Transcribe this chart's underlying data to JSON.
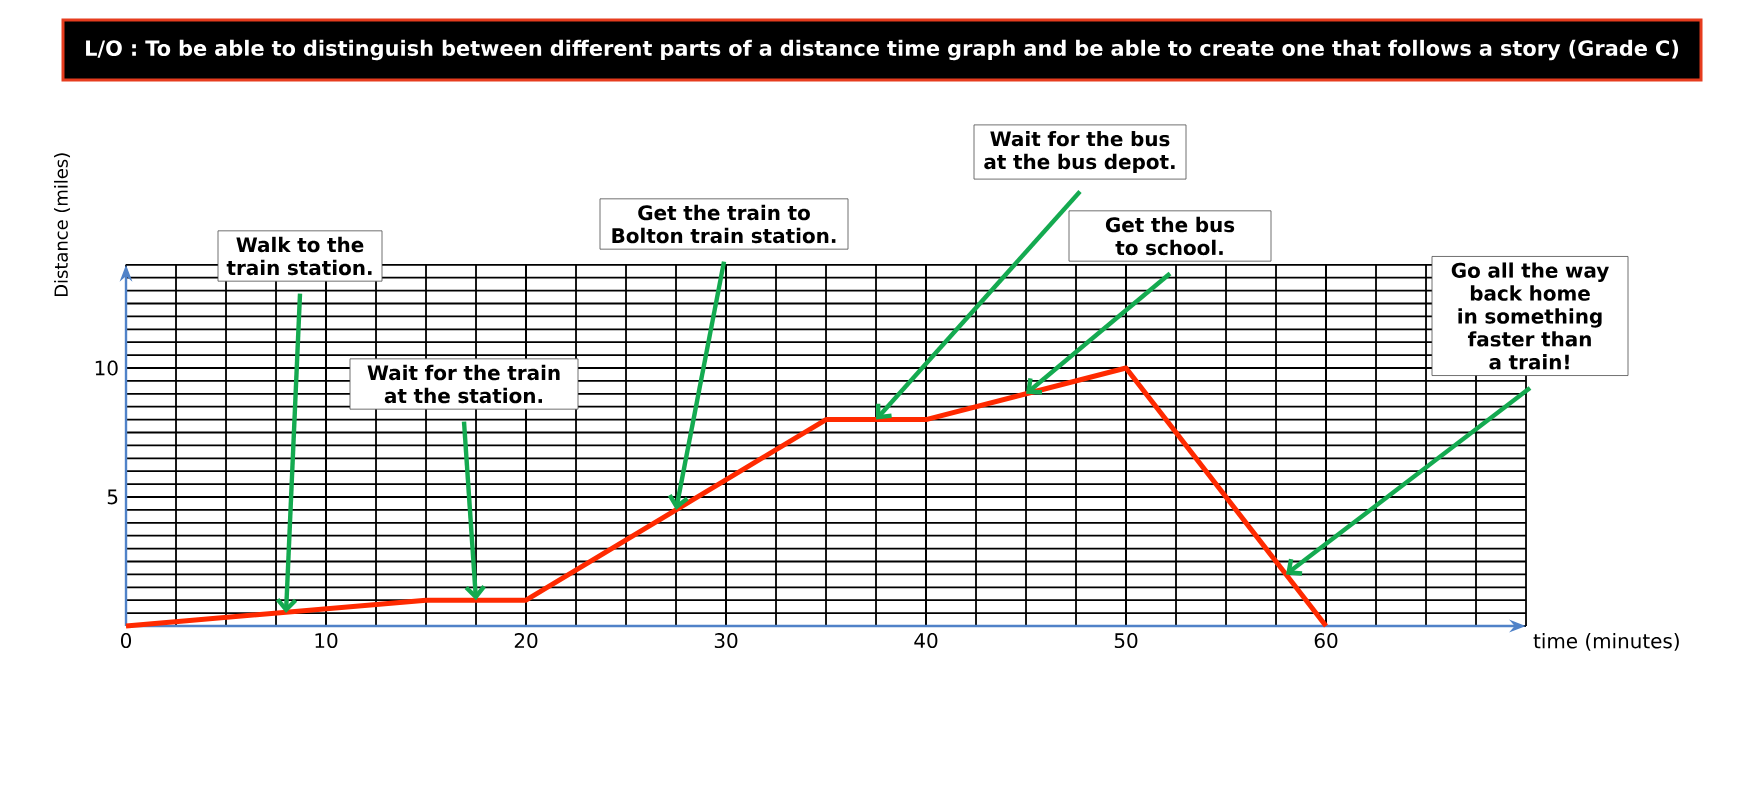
{
  "chart_data": {
    "type": "line",
    "title": "L/O : To be able to distinguish between different parts of a distance time graph and be able to create one that follows a story (Grade C)",
    "xlabel": "time (minutes)",
    "ylabel": "Distance (miles)",
    "x": [
      0,
      15,
      20,
      35,
      40,
      50,
      60
    ],
    "series": [
      {
        "color": "#ff2a00",
        "values": [
          0,
          1,
          1,
          8,
          8,
          10,
          0
        ]
      }
    ],
    "xlim": [
      0,
      70
    ],
    "ylim": [
      0,
      14
    ],
    "xticks": [
      0,
      10,
      20,
      30,
      40,
      50,
      60
    ],
    "yticks": [
      5,
      10
    ],
    "grid": true,
    "marker": "none",
    "line_style": "solid",
    "annotations": [
      {
        "text": "Walk to the train station.",
        "x": 8,
        "y": 0.5
      },
      {
        "text": "Wait for the train at the station.",
        "x": 17.5,
        "y": 1
      },
      {
        "text": "Get the train to Bolton train station.",
        "x": 27.5,
        "y": 4.5
      },
      {
        "text": "Wait for the bus at the bus depot.",
        "x": 37.5,
        "y": 8
      },
      {
        "text": "Get the bus to school.",
        "x": 45,
        "y": 9
      },
      {
        "text": "Go all the way back home in something faster than a train!",
        "x": 58,
        "y": 2
      }
    ]
  }
}
